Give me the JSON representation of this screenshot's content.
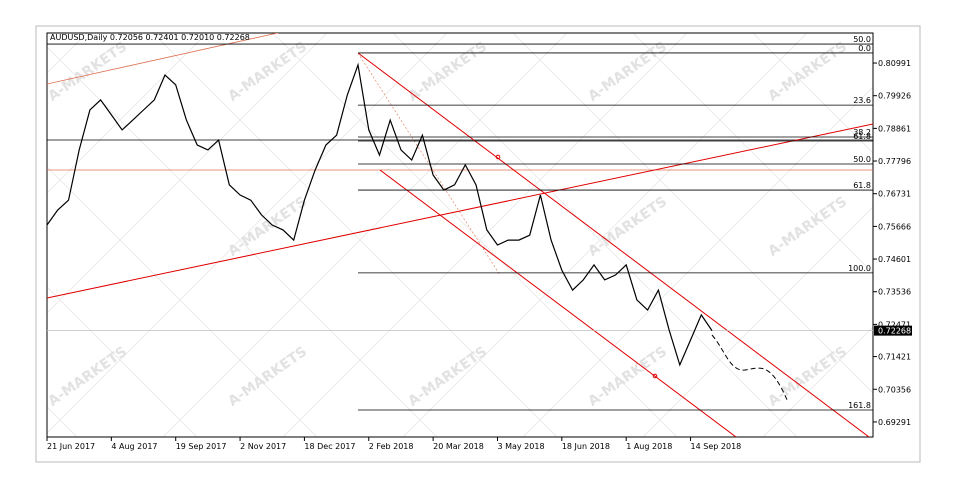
{
  "chart_data": {
    "type": "line",
    "title": "AUDUSD,Daily  0.72056 0.72401 0.72010 0.72268",
    "categories": [
      "21 Jun 2017",
      null,
      null,
      null,
      null,
      null,
      "4 Aug 2017",
      null,
      null,
      null,
      null,
      null,
      "19 Sep 2017",
      null,
      null,
      null,
      null,
      null,
      "2 Nov 2017",
      null,
      null,
      null,
      null,
      null,
      "18 Dec 2017",
      null,
      null,
      null,
      null,
      null,
      "2 Feb 2018",
      null,
      null,
      null,
      null,
      null,
      "20 Mar 2018",
      null,
      null,
      null,
      null,
      null,
      "3 May 2018",
      null,
      null,
      null,
      null,
      null,
      "18 Jun 2018",
      null,
      null,
      null,
      null,
      null,
      "1 Aug 2018",
      null,
      null,
      null,
      null,
      null,
      "14 Sep 2018",
      null,
      null
    ],
    "values": [
      0.7571,
      0.762,
      0.7652,
      0.7816,
      0.7946,
      0.7979,
      0.793,
      0.7881,
      0.7913,
      0.7946,
      0.7979,
      0.806,
      0.8028,
      0.7913,
      0.7832,
      0.7816,
      0.7848,
      0.7702,
      0.7669,
      0.7652,
      0.7604,
      0.7571,
      0.7555,
      0.7522,
      0.7652,
      0.775,
      0.7832,
      0.7864,
      0.7995,
      0.8093,
      0.7881,
      0.7799,
      0.7913,
      0.7816,
      0.7783,
      0.7864,
      0.7734,
      0.7685,
      0.7702,
      0.7767,
      0.7702,
      0.7555,
      0.7506,
      0.7522,
      0.7522,
      0.7538,
      0.7669,
      0.7522,
      0.7424,
      0.7359,
      0.7392,
      0.7441,
      0.7392,
      0.7408,
      0.7441,
      0.7327,
      0.7294,
      0.7359,
      0.7229,
      0.7115,
      0.7196,
      0.7278,
      0.7227
    ],
    "color": "#000000",
    "ylim": [
      0.688,
      0.8197
    ],
    "yticks": [
      0.80991,
      0.79926,
      0.78861,
      0.77796,
      0.76731,
      0.75666,
      0.74601,
      0.73536,
      0.72471,
      0.71421,
      0.70356,
      0.69291
    ],
    "last_price": 0.72268,
    "fib_levels": [
      {
        "label": "50.0",
        "price": 0.8161
      },
      {
        "label": "0.0",
        "price": 0.8132
      },
      {
        "label": "23.6",
        "price": 0.7962
      },
      {
        "label": "38.2",
        "price": 0.7858
      },
      {
        "label": "61.8",
        "price": 0.7845
      },
      {
        "label": "50.0",
        "price": 0.777
      },
      {
        "label": "61.8",
        "price": 0.7685
      },
      {
        "label": "100.0",
        "price": 0.7415
      },
      {
        "label": "161.8",
        "price": 0.6968
      }
    ],
    "watermark": "A-MARKETS"
  }
}
